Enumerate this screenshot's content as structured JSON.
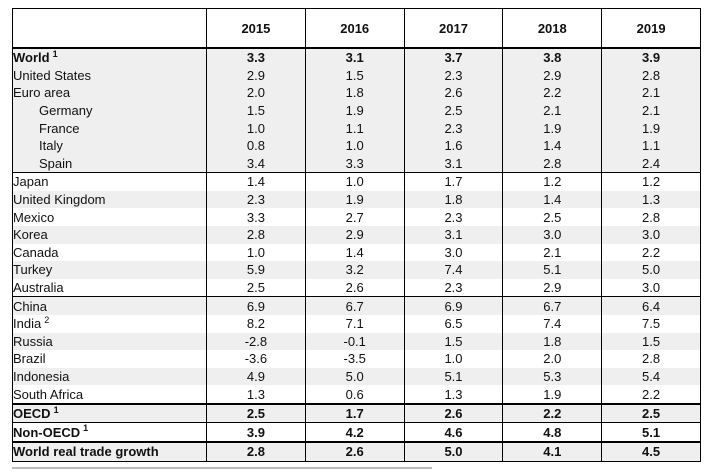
{
  "table": {
    "years": [
      "2015",
      "2016",
      "2017",
      "2018",
      "2019"
    ],
    "rows": [
      {
        "label": "World",
        "note": "1",
        "values": [
          "3.3",
          "3.1",
          "3.7",
          "3.8",
          "3.9"
        ],
        "bold": true,
        "shaded": true,
        "indent": false,
        "sep": "thick"
      },
      {
        "label": "United States",
        "note": "",
        "values": [
          "2.9",
          "1.5",
          "2.3",
          "2.9",
          "2.8"
        ],
        "bold": false,
        "shaded": true,
        "indent": false,
        "sep": ""
      },
      {
        "label": "Euro area",
        "note": "",
        "values": [
          "2.0",
          "1.8",
          "2.6",
          "2.2",
          "2.1"
        ],
        "bold": false,
        "shaded": true,
        "indent": false,
        "sep": ""
      },
      {
        "label": "Germany",
        "note": "",
        "values": [
          "1.5",
          "1.9",
          "2.5",
          "2.1",
          "2.1"
        ],
        "bold": false,
        "shaded": true,
        "indent": true,
        "sep": ""
      },
      {
        "label": "France",
        "note": "",
        "values": [
          "1.0",
          "1.1",
          "2.3",
          "1.9",
          "1.9"
        ],
        "bold": false,
        "shaded": true,
        "indent": true,
        "sep": ""
      },
      {
        "label": "Italy",
        "note": "",
        "values": [
          "0.8",
          "1.0",
          "1.6",
          "1.4",
          "1.1"
        ],
        "bold": false,
        "shaded": true,
        "indent": true,
        "sep": ""
      },
      {
        "label": "Spain",
        "note": "",
        "values": [
          "3.4",
          "3.3",
          "3.1",
          "2.8",
          "2.4"
        ],
        "bold": false,
        "shaded": true,
        "indent": true,
        "sep": ""
      },
      {
        "label": "Japan",
        "note": "",
        "values": [
          "1.4",
          "1.0",
          "1.7",
          "1.2",
          "1.2"
        ],
        "bold": false,
        "shaded": false,
        "indent": false,
        "sep": "thin"
      },
      {
        "label": "United Kingdom",
        "note": "",
        "values": [
          "2.3",
          "1.9",
          "1.8",
          "1.4",
          "1.3"
        ],
        "bold": false,
        "shaded": true,
        "indent": false,
        "sep": ""
      },
      {
        "label": "Mexico",
        "note": "",
        "values": [
          "3.3",
          "2.7",
          "2.3",
          "2.5",
          "2.8"
        ],
        "bold": false,
        "shaded": false,
        "indent": false,
        "sep": ""
      },
      {
        "label": "Korea",
        "note": "",
        "values": [
          "2.8",
          "2.9",
          "3.1",
          "3.0",
          "3.0"
        ],
        "bold": false,
        "shaded": true,
        "indent": false,
        "sep": ""
      },
      {
        "label": "Canada",
        "note": "",
        "values": [
          "1.0",
          "1.4",
          "3.0",
          "2.1",
          "2.2"
        ],
        "bold": false,
        "shaded": false,
        "indent": false,
        "sep": ""
      },
      {
        "label": "Turkey",
        "note": "",
        "values": [
          "5.9",
          "3.2",
          "7.4",
          "5.1",
          "5.0"
        ],
        "bold": false,
        "shaded": true,
        "indent": false,
        "sep": ""
      },
      {
        "label": "Australia",
        "note": "",
        "values": [
          "2.5",
          "2.6",
          "2.3",
          "2.9",
          "3.0"
        ],
        "bold": false,
        "shaded": false,
        "indent": false,
        "sep": ""
      },
      {
        "label": "China",
        "note": "",
        "values": [
          "6.9",
          "6.7",
          "6.9",
          "6.7",
          "6.4"
        ],
        "bold": false,
        "shaded": true,
        "indent": false,
        "sep": "thin"
      },
      {
        "label": "India",
        "note": "2",
        "values": [
          "8.2",
          "7.1",
          "6.5",
          "7.4",
          "7.5"
        ],
        "bold": false,
        "shaded": false,
        "indent": false,
        "sep": ""
      },
      {
        "label": "Russia",
        "note": "",
        "values": [
          "-2.8",
          "-0.1",
          "1.5",
          "1.8",
          "1.5"
        ],
        "bold": false,
        "shaded": true,
        "indent": false,
        "sep": ""
      },
      {
        "label": "Brazil",
        "note": "",
        "values": [
          "-3.6",
          "-3.5",
          "1.0",
          "2.0",
          "2.8"
        ],
        "bold": false,
        "shaded": false,
        "indent": false,
        "sep": ""
      },
      {
        "label": "Indonesia",
        "note": "",
        "values": [
          "4.9",
          "5.0",
          "5.1",
          "5.3",
          "5.4"
        ],
        "bold": false,
        "shaded": true,
        "indent": false,
        "sep": ""
      },
      {
        "label": "South Africa",
        "note": "",
        "values": [
          "1.3",
          "0.6",
          "1.3",
          "1.9",
          "2.2"
        ],
        "bold": false,
        "shaded": false,
        "indent": false,
        "sep": ""
      },
      {
        "label": "OECD",
        "note": "1",
        "values": [
          "2.5",
          "1.7",
          "2.6",
          "2.2",
          "2.5"
        ],
        "bold": true,
        "shaded": true,
        "indent": false,
        "sep": "thick"
      },
      {
        "label": "Non-OECD",
        "note": "1",
        "values": [
          "3.9",
          "4.2",
          "4.6",
          "4.8",
          "5.1"
        ],
        "bold": true,
        "shaded": false,
        "indent": false,
        "sep": "thin"
      },
      {
        "label": "World real trade growth",
        "note": "",
        "values": [
          "2.8",
          "2.6",
          "5.0",
          "4.1",
          "4.5"
        ],
        "bold": true,
        "shaded": true,
        "indent": false,
        "sep": "thick"
      }
    ]
  }
}
